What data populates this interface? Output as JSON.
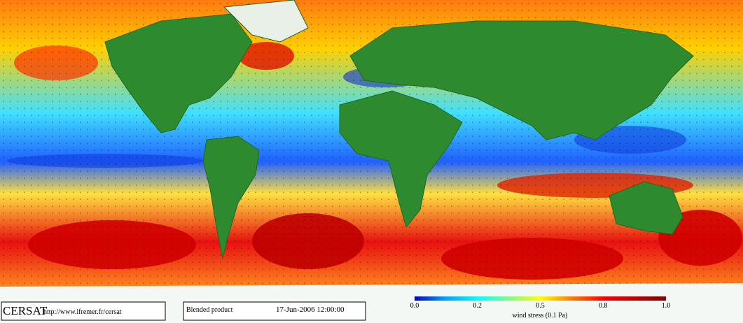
{
  "logo": "CERSAT",
  "url": "http://www.ifremer.fr/cersat",
  "product": "Blended product",
  "date": "17-Jun-2006 12:00:00",
  "colorbar": {
    "ticks": [
      "0.0",
      "0.2",
      "0.5",
      "0.8",
      "1.0"
    ],
    "label": "wind stress (0.1 Pa)"
  }
}
